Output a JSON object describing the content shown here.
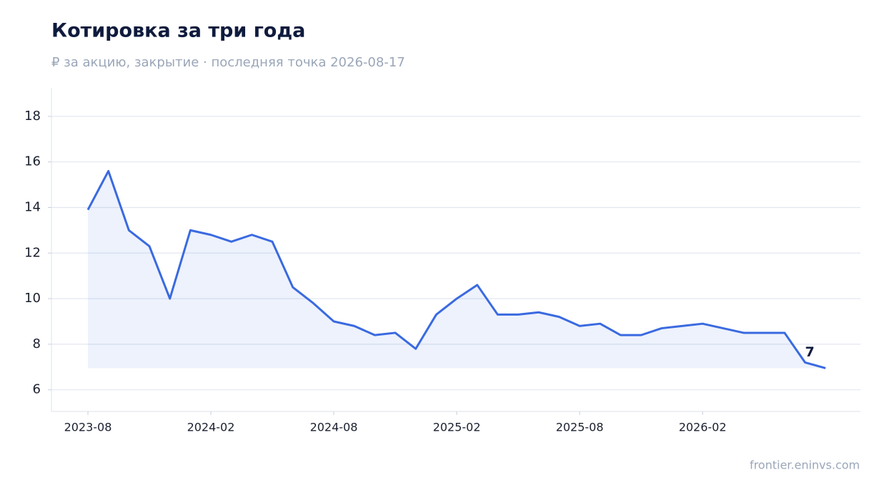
{
  "chart_data": {
    "type": "line",
    "title": "Котировка за три года",
    "subtitle": "₽ за акцию, закрытие · последняя точка 2026-08-17",
    "source": "frontier.eninvs.com",
    "x": [
      "2023-08",
      "2023-09",
      "2023-10",
      "2023-11",
      "2023-12",
      "2024-01",
      "2024-02",
      "2024-03",
      "2024-04",
      "2024-05",
      "2024-06",
      "2024-07",
      "2024-08",
      "2024-09",
      "2024-10",
      "2024-11",
      "2024-12",
      "2025-01",
      "2025-02",
      "2025-03",
      "2025-04",
      "2025-05",
      "2025-06",
      "2025-07",
      "2025-08",
      "2025-09",
      "2025-10",
      "2025-11",
      "2025-12",
      "2026-01",
      "2026-02",
      "2026-03",
      "2026-04",
      "2026-05",
      "2026-06",
      "2026-07",
      "2026-08"
    ],
    "series": [
      {
        "name": "Котировка",
        "color": "#3a6ae0",
        "values": [
          13.9,
          15.6,
          13.0,
          12.3,
          10.0,
          13.0,
          12.8,
          12.5,
          12.8,
          12.5,
          10.5,
          9.8,
          9.0,
          8.8,
          8.4,
          8.5,
          7.8,
          9.3,
          10.0,
          10.6,
          9.3,
          9.3,
          9.4,
          9.2,
          8.8,
          8.9,
          8.4,
          8.4,
          8.7,
          8.8,
          8.9,
          8.7,
          8.5,
          8.5,
          8.5,
          7.2,
          6.95
        ],
        "value_labels": [
          null,
          null,
          null,
          null,
          null,
          null,
          null,
          null,
          null,
          null,
          null,
          null,
          null,
          null,
          null,
          null,
          null,
          null,
          null,
          null,
          null,
          null,
          null,
          null,
          null,
          null,
          null,
          null,
          null,
          null,
          null,
          null,
          null,
          null,
          null,
          null,
          "7"
        ]
      }
    ],
    "xticks": [
      "2023-08",
      "2024-02",
      "2024-08",
      "2025-02",
      "2025-08",
      "2026-02"
    ],
    "ylim": [
      5.05,
      19.25
    ],
    "yticks": [
      6,
      8,
      10,
      12,
      14,
      16,
      18
    ],
    "grid": true
  }
}
